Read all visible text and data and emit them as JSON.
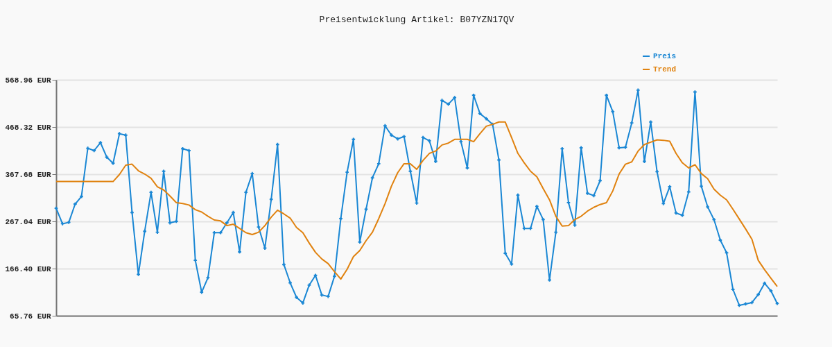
{
  "chart_data": {
    "type": "line",
    "title": "Preisentwicklung Artikel: B07YZN17QV",
    "categories": [
      null,
      null,
      null,
      null,
      null,
      null,
      null,
      null,
      null,
      null,
      null,
      null,
      null,
      null,
      null,
      null,
      null,
      null,
      null,
      null,
      null,
      null,
      null,
      null,
      null,
      null,
      null,
      null,
      null,
      null,
      null,
      null,
      null,
      null,
      null,
      null,
      null,
      null,
      null,
      null,
      null,
      null,
      null,
      null,
      null,
      null,
      null,
      null,
      null,
      null,
      null,
      null,
      null,
      null,
      null,
      null,
      null,
      null,
      null,
      null,
      null,
      null,
      null,
      null,
      null,
      null,
      null,
      null,
      null,
      null,
      null,
      null,
      null,
      null,
      null,
      null,
      null,
      null,
      null,
      null,
      null,
      null,
      null,
      null,
      null,
      null,
      null,
      null,
      null,
      null,
      null,
      null,
      null,
      null,
      null,
      null,
      null,
      null,
      null,
      null,
      null,
      null,
      null,
      null,
      null,
      null,
      null,
      null,
      null,
      null,
      null,
      null,
      null,
      null,
      null
    ],
    "series": [
      {
        "name": "Preis",
        "color": "#1a87d4",
        "marker": "cross",
        "values": [
          295,
          262,
          265,
          304,
          320,
          423,
          418,
          435,
          404,
          391,
          454,
          451,
          286,
          154,
          246,
          329,
          244,
          374,
          264,
          267,
          422,
          418,
          184,
          116,
          147,
          243,
          243,
          264,
          286,
          202,
          329,
          369,
          255,
          210,
          314,
          431,
          175,
          136,
          105,
          93,
          131,
          152,
          110,
          107,
          150,
          273,
          372,
          442,
          223,
          293,
          360,
          390,
          471,
          451,
          443,
          448,
          374,
          306,
          446,
          439,
          395,
          525,
          517,
          531,
          437,
          381,
          536,
          497,
          486,
          474,
          398,
          199,
          176,
          323,
          252,
          252,
          299,
          271,
          142,
          244,
          422,
          307,
          259,
          424,
          327,
          322,
          354,
          536,
          501,
          424,
          425,
          477,
          547,
          395,
          479,
          373,
          305,
          341,
          285,
          280,
          330,
          543,
          342,
          298,
          271,
          227,
          200,
          122,
          88,
          91,
          94,
          111,
          135,
          119,
          92
        ]
      },
      {
        "name": "Trend",
        "color": "#e0820f",
        "values": [
          352,
          352,
          352,
          352,
          352,
          352,
          352,
          352,
          352,
          352,
          367,
          387,
          389,
          375,
          368,
          359,
          341,
          334,
          321,
          307,
          305,
          302,
          292,
          287,
          278,
          270,
          268,
          258,
          261,
          252,
          243,
          239,
          244,
          258,
          276,
          291,
          283,
          274,
          254,
          243,
          221,
          201,
          187,
          177,
          160,
          144,
          165,
          192,
          205,
          226,
          244,
          273,
          305,
          342,
          371,
          390,
          390,
          378,
          397,
          412,
          417,
          430,
          434,
          442,
          442,
          442,
          437,
          454,
          470,
          474,
          479,
          479,
          446,
          412,
          392,
          374,
          362,
          337,
          313,
          278,
          257,
          258,
          271,
          278,
          289,
          297,
          303,
          307,
          332,
          368,
          389,
          394,
          417,
          431,
          436,
          441,
          440,
          438,
          412,
          392,
          381,
          388,
          369,
          358,
          336,
          323,
          313,
          293,
          272,
          251,
          229,
          184,
          164,
          146,
          128
        ]
      }
    ],
    "ylim": [
      65.76,
      568.96
    ],
    "yticks": [
      {
        "value": 65.76,
        "label": "65.76 EUR"
      },
      {
        "value": 166.4,
        "label": "166.40 EUR"
      },
      {
        "value": 267.04,
        "label": "267.04 EUR"
      },
      {
        "value": 367.68,
        "label": "367.68 EUR"
      },
      {
        "value": 468.32,
        "label": "468.32 EUR"
      },
      {
        "value": 568.96,
        "label": "568.96 EUR"
      }
    ],
    "grid": "y",
    "legend": "top right",
    "tick_labels": "y"
  }
}
